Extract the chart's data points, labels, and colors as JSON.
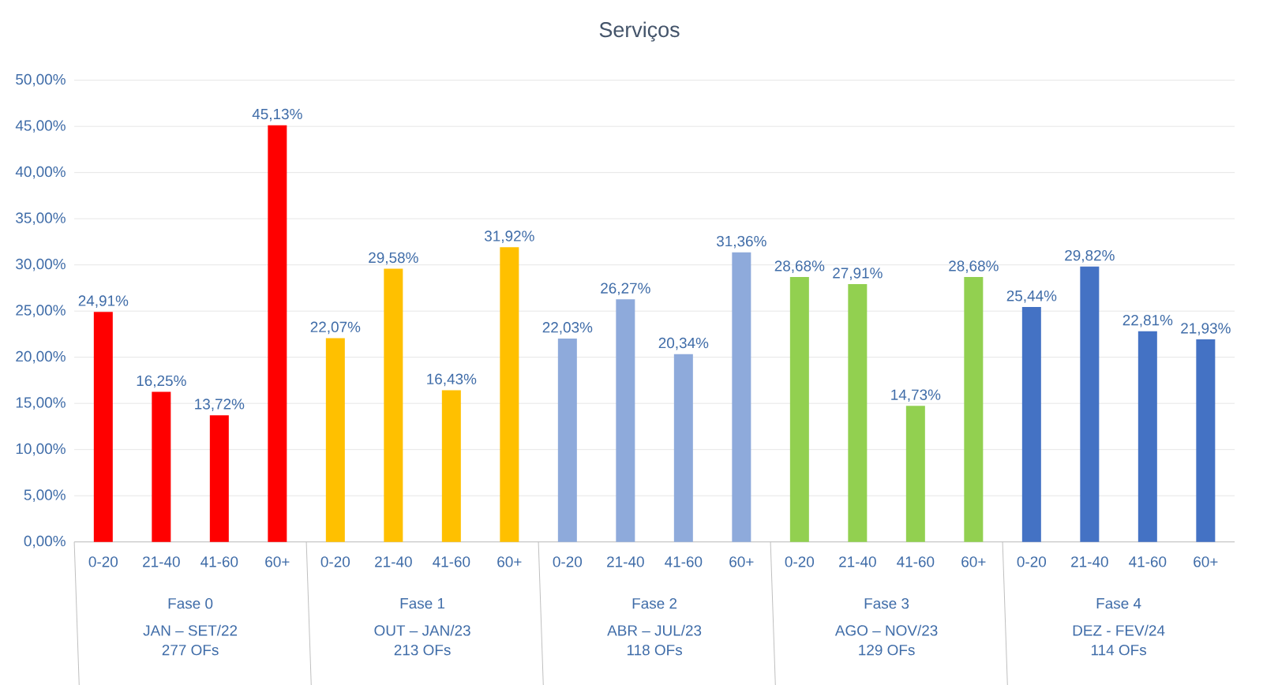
{
  "chart_data": {
    "type": "bar",
    "title": "Serviços",
    "categories": [
      "0-20",
      "21-40",
      "41-60",
      "60+",
      "0-20",
      "21-40",
      "41-60",
      "60+",
      "0-20",
      "21-40",
      "41-60",
      "60+",
      "0-20",
      "21-40",
      "41-60",
      "60+",
      "0-20",
      "21-40",
      "41-60",
      "60+"
    ],
    "values": [
      24.91,
      16.25,
      13.72,
      45.13,
      22.07,
      29.58,
      16.43,
      31.92,
      22.03,
      26.27,
      20.34,
      31.36,
      28.68,
      27.91,
      14.73,
      28.68,
      25.44,
      29.82,
      22.81,
      21.93
    ],
    "colors": [
      "#ff0000",
      "#ff0000",
      "#ff0000",
      "#ff0000",
      "#ffc000",
      "#ffc000",
      "#ffc000",
      "#ffc000",
      "#8eaadb",
      "#8eaadb",
      "#8eaadb",
      "#8eaadb",
      "#92d050",
      "#92d050",
      "#92d050",
      "#92d050",
      "#4472c4",
      "#4472c4",
      "#4472c4",
      "#4472c4"
    ],
    "value_labels": [
      "24,91%",
      "16,25%",
      "13,72%",
      "45,13%",
      "22,07%",
      "29,58%",
      "16,43%",
      "31,92%",
      "22,03%",
      "26,27%",
      "20,34%",
      "31,36%",
      "28,68%",
      "27,91%",
      "14,73%",
      "28,68%",
      "25,44%",
      "29,82%",
      "22,81%",
      "21,93%"
    ],
    "ylim": [
      0,
      50
    ],
    "yticks": [
      {
        "value": 0,
        "label": "0,00%"
      },
      {
        "value": 5,
        "label": "5,00%"
      },
      {
        "value": 10,
        "label": "10,00%"
      },
      {
        "value": 15,
        "label": "15,00%"
      },
      {
        "value": 20,
        "label": "20,00%"
      },
      {
        "value": 25,
        "label": "25,00%"
      },
      {
        "value": 30,
        "label": "30,00%"
      },
      {
        "value": 35,
        "label": "35,00%"
      },
      {
        "value": 40,
        "label": "40,00%"
      },
      {
        "value": 45,
        "label": "45,00%"
      },
      {
        "value": 50,
        "label": "50,00%"
      }
    ],
    "grid": "y",
    "annotations": [
      "Fase 0",
      "JAN – SET/22",
      "277 OFs",
      "Fase 1",
      "OUT – JAN/23",
      "213 OFs",
      "Fase 2",
      "ABR – JUL/23",
      "118 OFs",
      "Fase 3",
      "AGO – NOV/23",
      "129 OFs",
      "Fase 4",
      "DEZ - FEV/24",
      "114 OFs"
    ]
  }
}
